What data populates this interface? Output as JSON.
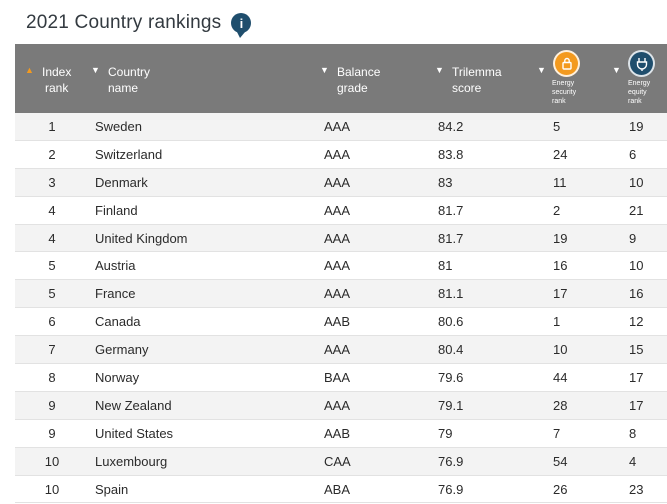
{
  "page": {
    "title": "2021 Country rankings",
    "info_icon": "info-icon"
  },
  "table": {
    "headers": {
      "index_rank": "Index\nrank",
      "country_name": "Country\nname",
      "balance_grade": "Balance\ngrade",
      "trilemma_score": "Trilemma\nscore",
      "energy_security_rank": "Energy\nsecurity\nrank",
      "energy_equity_rank": "Energy\nequity\nrank"
    },
    "header_icons": {
      "energy_security": "lock-icon",
      "energy_equity": "plug-icon"
    },
    "colors": {
      "header_bg": "#7a7a7a",
      "sort_active": "#f39a1f",
      "security_icon_bg": "#f39a1f",
      "equity_icon_bg": "#1f4e6d"
    },
    "rows": [
      {
        "rank": "1",
        "country": "Sweden",
        "grade": "AAA",
        "score": "84.2",
        "security": "5",
        "equity": "19"
      },
      {
        "rank": "2",
        "country": "Switzerland",
        "grade": "AAA",
        "score": "83.8",
        "security": "24",
        "equity": "6"
      },
      {
        "rank": "3",
        "country": "Denmark",
        "grade": "AAA",
        "score": "83",
        "security": "11",
        "equity": "10"
      },
      {
        "rank": "4",
        "country": "Finland",
        "grade": "AAA",
        "score": "81.7",
        "security": "2",
        "equity": "21"
      },
      {
        "rank": "4",
        "country": "United Kingdom",
        "grade": "AAA",
        "score": "81.7",
        "security": "19",
        "equity": "9"
      },
      {
        "rank": "5",
        "country": "Austria",
        "grade": "AAA",
        "score": "81",
        "security": "16",
        "equity": "10"
      },
      {
        "rank": "5",
        "country": "France",
        "grade": "AAA",
        "score": "81.1",
        "security": "17",
        "equity": "16"
      },
      {
        "rank": "6",
        "country": "Canada",
        "grade": "AAB",
        "score": "80.6",
        "security": "1",
        "equity": "12"
      },
      {
        "rank": "7",
        "country": "Germany",
        "grade": "AAA",
        "score": "80.4",
        "security": "10",
        "equity": "15"
      },
      {
        "rank": "8",
        "country": "Norway",
        "grade": "BAA",
        "score": "79.6",
        "security": "44",
        "equity": "17"
      },
      {
        "rank": "9",
        "country": "New Zealand",
        "grade": "AAA",
        "score": "79.1",
        "security": "28",
        "equity": "17"
      },
      {
        "rank": "9",
        "country": "United States",
        "grade": "AAB",
        "score": "79",
        "security": "7",
        "equity": "8"
      },
      {
        "rank": "10",
        "country": "Luxembourg",
        "grade": "CAA",
        "score": "76.9",
        "security": "54",
        "equity": "4"
      },
      {
        "rank": "10",
        "country": "Spain",
        "grade": "ABA",
        "score": "76.9",
        "security": "26",
        "equity": "23"
      }
    ]
  }
}
